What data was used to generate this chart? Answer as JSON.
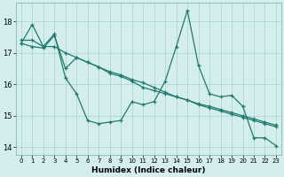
{
  "line1_x": [
    0,
    1,
    2,
    3,
    4,
    5,
    6,
    7,
    8,
    9,
    10,
    11,
    12,
    13,
    14,
    15,
    16,
    17,
    18,
    19,
    20,
    21,
    22,
    23
  ],
  "line1_y": [
    17.3,
    17.9,
    17.2,
    17.6,
    16.2,
    15.7,
    14.85,
    14.75,
    14.8,
    14.85,
    15.45,
    15.35,
    15.45,
    16.1,
    17.2,
    18.35,
    16.6,
    15.7,
    15.6,
    15.65,
    15.3,
    14.3,
    14.3,
    14.05
  ],
  "line2_x": [
    0,
    1,
    2,
    3,
    4,
    5,
    6,
    7,
    8,
    9,
    10,
    11,
    12,
    13,
    14,
    15,
    16,
    17,
    18,
    19,
    20,
    21,
    22,
    23
  ],
  "line2_y": [
    17.4,
    17.4,
    17.2,
    17.2,
    17.0,
    16.85,
    16.7,
    16.55,
    16.4,
    16.3,
    16.15,
    16.05,
    15.9,
    15.75,
    15.6,
    15.5,
    15.35,
    15.25,
    15.15,
    15.05,
    14.95,
    14.85,
    14.75,
    14.65
  ],
  "line3_x": [
    0,
    1,
    2,
    3,
    4,
    5,
    6,
    7,
    8,
    9,
    10,
    11,
    12,
    13,
    14,
    15,
    16,
    17,
    18,
    19,
    20,
    21,
    22,
    23
  ],
  "line3_y": [
    17.3,
    17.2,
    17.15,
    17.55,
    16.5,
    16.85,
    16.7,
    16.55,
    16.35,
    16.25,
    16.1,
    15.9,
    15.8,
    15.7,
    15.6,
    15.5,
    15.38,
    15.3,
    15.2,
    15.1,
    15.0,
    14.9,
    14.8,
    14.7
  ],
  "line_color": "#217a6e",
  "bg_color": "#d4eeee",
  "grid_color": "#aad0d0",
  "xlabel": "Humidex (Indice chaleur)",
  "ylim": [
    13.75,
    18.6
  ],
  "yticks": [
    14,
    15,
    16,
    17,
    18
  ],
  "xticks": [
    0,
    1,
    2,
    3,
    4,
    5,
    6,
    7,
    8,
    9,
    10,
    11,
    12,
    13,
    14,
    15,
    16,
    17,
    18,
    19,
    20,
    21,
    22,
    23
  ]
}
